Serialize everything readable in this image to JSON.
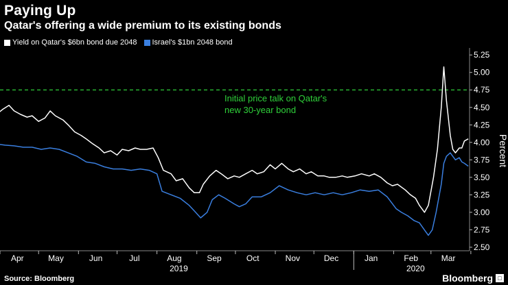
{
  "chart_data": {
    "type": "line",
    "title": "Paying Up",
    "subtitle": "Qatar's offering a wide premium to its existing bonds",
    "ylabel": "Percent",
    "ylim": [
      2.5,
      5.25
    ],
    "yticks": [
      "2.50",
      "2.75",
      "3.00",
      "3.25",
      "3.50",
      "3.75",
      "4.00",
      "4.25",
      "4.50",
      "4.75",
      "5.00",
      "5.25"
    ],
    "months": [
      "Apr",
      "May",
      "Jun",
      "Jul",
      "Aug",
      "Sep",
      "Oct",
      "Nov",
      "Dec",
      "Jan",
      "Feb",
      "Mar"
    ],
    "years": [
      "2019",
      "2020"
    ],
    "x_range": [
      "2019-04-01",
      "2020-03-31"
    ],
    "reference_line": {
      "value": 4.75,
      "color": "#2fd13a",
      "label_line1": "Initial price talk on Qatar's",
      "label_line2": "new 30-year bond"
    },
    "series": [
      {
        "name": "Yield on Qatar's $6bn bond due 2048",
        "color": "#ffffff",
        "points": [
          [
            "2019-03-28",
            4.38
          ],
          [
            "2019-04-03",
            4.47
          ],
          [
            "2019-04-08",
            4.53
          ],
          [
            "2019-04-12",
            4.45
          ],
          [
            "2019-04-17",
            4.4
          ],
          [
            "2019-04-22",
            4.36
          ],
          [
            "2019-04-26",
            4.38
          ],
          [
            "2019-05-01",
            4.3
          ],
          [
            "2019-05-06",
            4.35
          ],
          [
            "2019-05-10",
            4.45
          ],
          [
            "2019-05-14",
            4.38
          ],
          [
            "2019-05-20",
            4.32
          ],
          [
            "2019-05-24",
            4.25
          ],
          [
            "2019-05-29",
            4.15
          ],
          [
            "2019-06-03",
            4.1
          ],
          [
            "2019-06-07",
            4.05
          ],
          [
            "2019-06-12",
            3.98
          ],
          [
            "2019-06-17",
            3.92
          ],
          [
            "2019-06-21",
            3.85
          ],
          [
            "2019-06-26",
            3.88
          ],
          [
            "2019-07-01",
            3.82
          ],
          [
            "2019-07-05",
            3.9
          ],
          [
            "2019-07-10",
            3.88
          ],
          [
            "2019-07-15",
            3.92
          ],
          [
            "2019-07-19",
            3.9
          ],
          [
            "2019-07-24",
            3.9
          ],
          [
            "2019-07-29",
            3.92
          ],
          [
            "2019-08-02",
            3.78
          ],
          [
            "2019-08-06",
            3.6
          ],
          [
            "2019-08-12",
            3.55
          ],
          [
            "2019-08-16",
            3.45
          ],
          [
            "2019-08-21",
            3.48
          ],
          [
            "2019-08-26",
            3.35
          ],
          [
            "2019-08-30",
            3.28
          ],
          [
            "2019-09-03",
            3.28
          ],
          [
            "2019-09-06",
            3.4
          ],
          [
            "2019-09-11",
            3.52
          ],
          [
            "2019-09-16",
            3.6
          ],
          [
            "2019-09-20",
            3.55
          ],
          [
            "2019-09-25",
            3.48
          ],
          [
            "2019-09-30",
            3.52
          ],
          [
            "2019-10-04",
            3.5
          ],
          [
            "2019-10-09",
            3.55
          ],
          [
            "2019-10-14",
            3.6
          ],
          [
            "2019-10-18",
            3.55
          ],
          [
            "2019-10-23",
            3.58
          ],
          [
            "2019-10-28",
            3.68
          ],
          [
            "2019-11-01",
            3.62
          ],
          [
            "2019-11-06",
            3.7
          ],
          [
            "2019-11-11",
            3.62
          ],
          [
            "2019-11-15",
            3.58
          ],
          [
            "2019-11-20",
            3.62
          ],
          [
            "2019-11-25",
            3.55
          ],
          [
            "2019-11-29",
            3.58
          ],
          [
            "2019-12-04",
            3.52
          ],
          [
            "2019-12-09",
            3.52
          ],
          [
            "2019-12-13",
            3.5
          ],
          [
            "2019-12-18",
            3.5
          ],
          [
            "2019-12-23",
            3.52
          ],
          [
            "2019-12-27",
            3.5
          ],
          [
            "2020-01-02",
            3.52
          ],
          [
            "2020-01-07",
            3.55
          ],
          [
            "2020-01-13",
            3.52
          ],
          [
            "2020-01-17",
            3.55
          ],
          [
            "2020-01-22",
            3.5
          ],
          [
            "2020-01-27",
            3.42
          ],
          [
            "2020-01-31",
            3.38
          ],
          [
            "2020-02-04",
            3.4
          ],
          [
            "2020-02-10",
            3.32
          ],
          [
            "2020-02-14",
            3.25
          ],
          [
            "2020-02-18",
            3.2
          ],
          [
            "2020-02-21",
            3.1
          ],
          [
            "2020-02-25",
            3.0
          ],
          [
            "2020-02-28",
            3.1
          ],
          [
            "2020-03-03",
            3.5
          ],
          [
            "2020-03-06",
            3.9
          ],
          [
            "2020-03-09",
            4.5
          ],
          [
            "2020-03-11",
            5.08
          ],
          [
            "2020-03-13",
            4.6
          ],
          [
            "2020-03-16",
            4.1
          ],
          [
            "2020-03-18",
            3.9
          ],
          [
            "2020-03-20",
            3.85
          ],
          [
            "2020-03-23",
            3.92
          ],
          [
            "2020-03-25",
            3.92
          ],
          [
            "2020-03-27",
            4.02
          ],
          [
            "2020-03-30",
            4.05
          ]
        ]
      },
      {
        "name": "Israel's $1bn 2048 bond",
        "color": "#3a7fe0",
        "points": [
          [
            "2019-03-28",
            3.98
          ],
          [
            "2019-04-05",
            3.96
          ],
          [
            "2019-04-12",
            3.95
          ],
          [
            "2019-04-19",
            3.93
          ],
          [
            "2019-04-26",
            3.93
          ],
          [
            "2019-05-03",
            3.9
          ],
          [
            "2019-05-10",
            3.92
          ],
          [
            "2019-05-17",
            3.9
          ],
          [
            "2019-05-24",
            3.85
          ],
          [
            "2019-05-31",
            3.8
          ],
          [
            "2019-06-07",
            3.72
          ],
          [
            "2019-06-14",
            3.7
          ],
          [
            "2019-06-21",
            3.65
          ],
          [
            "2019-06-28",
            3.62
          ],
          [
            "2019-07-05",
            3.62
          ],
          [
            "2019-07-12",
            3.6
          ],
          [
            "2019-07-19",
            3.62
          ],
          [
            "2019-07-26",
            3.6
          ],
          [
            "2019-08-01",
            3.55
          ],
          [
            "2019-08-05",
            3.3
          ],
          [
            "2019-08-12",
            3.25
          ],
          [
            "2019-08-19",
            3.2
          ],
          [
            "2019-08-26",
            3.1
          ],
          [
            "2019-08-30",
            3.02
          ],
          [
            "2019-09-04",
            2.92
          ],
          [
            "2019-09-09",
            3.0
          ],
          [
            "2019-09-13",
            3.18
          ],
          [
            "2019-09-18",
            3.25
          ],
          [
            "2019-09-23",
            3.2
          ],
          [
            "2019-09-30",
            3.12
          ],
          [
            "2019-10-04",
            3.08
          ],
          [
            "2019-10-09",
            3.12
          ],
          [
            "2019-10-14",
            3.22
          ],
          [
            "2019-10-21",
            3.22
          ],
          [
            "2019-10-28",
            3.28
          ],
          [
            "2019-11-04",
            3.38
          ],
          [
            "2019-11-11",
            3.32
          ],
          [
            "2019-11-18",
            3.28
          ],
          [
            "2019-11-25",
            3.25
          ],
          [
            "2019-12-02",
            3.28
          ],
          [
            "2019-12-09",
            3.25
          ],
          [
            "2019-12-16",
            3.28
          ],
          [
            "2019-12-23",
            3.25
          ],
          [
            "2019-12-30",
            3.28
          ],
          [
            "2020-01-06",
            3.32
          ],
          [
            "2020-01-13",
            3.3
          ],
          [
            "2020-01-20",
            3.32
          ],
          [
            "2020-01-27",
            3.22
          ],
          [
            "2020-02-03",
            3.05
          ],
          [
            "2020-02-07",
            3.0
          ],
          [
            "2020-02-12",
            2.95
          ],
          [
            "2020-02-17",
            2.88
          ],
          [
            "2020-02-21",
            2.85
          ],
          [
            "2020-02-26",
            2.72
          ],
          [
            "2020-02-28",
            2.67
          ],
          [
            "2020-03-02",
            2.75
          ],
          [
            "2020-03-05",
            3.0
          ],
          [
            "2020-03-09",
            3.4
          ],
          [
            "2020-03-11",
            3.7
          ],
          [
            "2020-03-13",
            3.8
          ],
          [
            "2020-03-16",
            3.85
          ],
          [
            "2020-03-18",
            3.8
          ],
          [
            "2020-03-20",
            3.75
          ],
          [
            "2020-03-23",
            3.78
          ],
          [
            "2020-03-25",
            3.72
          ],
          [
            "2020-03-27",
            3.7
          ],
          [
            "2020-03-30",
            3.66
          ]
        ]
      }
    ]
  },
  "footer": {
    "source": "Source: Bloomberg",
    "brand": "Bloomberg"
  }
}
